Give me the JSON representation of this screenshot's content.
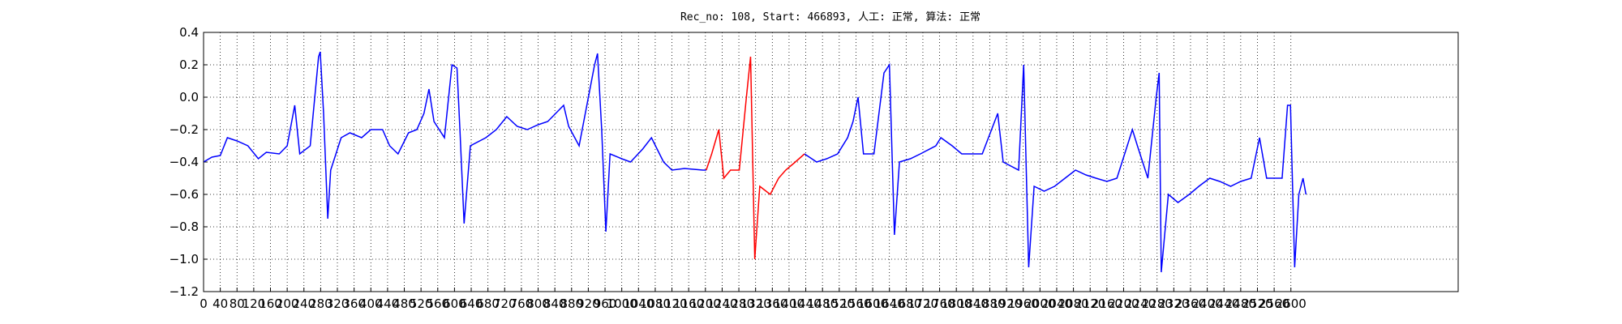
{
  "chart_data": {
    "type": "line",
    "title": "Rec_no: 108, Start: 466893, 人工: 正常, 算法: 正常",
    "xlim": [
      0,
      3000
    ],
    "xticks": [
      0,
      40,
      80,
      120,
      160,
      200,
      240,
      280,
      320,
      360,
      400,
      440,
      480,
      520,
      560,
      600,
      640,
      680,
      720,
      760,
      800,
      840,
      880,
      920,
      960,
      1000,
      1040,
      1080,
      1120,
      1160,
      1200,
      1240,
      1280,
      1320,
      1360,
      1400,
      1440,
      1480,
      1520,
      1560,
      1600,
      1640,
      1680,
      1720,
      1760,
      1800,
      1840,
      1880,
      1920,
      1960,
      2000,
      2040,
      2080,
      2120,
      2160,
      2200,
      2240,
      2280,
      2320,
      2360,
      2400,
      2440,
      2480,
      2520,
      2560,
      2600
    ],
    "ylim": [
      -1.2,
      0.4
    ],
    "yticks": [
      0.4,
      0.2,
      {
        "value": 0,
        "label": "0.0"
      },
      {
        "value": -0.2,
        "label": "−0.2"
      },
      {
        "value": -0.4,
        "label": "−0.4"
      },
      {
        "value": -0.6,
        "label": "−0.6"
      },
      {
        "value": -0.8,
        "label": "−0.8"
      },
      {
        "value": -1.0,
        "label": "−1.0"
      },
      {
        "value": -1.2,
        "label": "−1.2"
      }
    ],
    "grid": true,
    "series": [
      {
        "color": "#0000ff",
        "x": [
          0,
          20,
          40,
          57,
          80,
          106,
          131,
          150,
          181,
          200,
          218,
          230,
          255,
          275,
          279,
          287,
          297,
          304,
          329,
          350,
          378,
          400,
          428,
          445,
          465,
          490,
          510,
          527,
          539,
          551,
          576,
          594,
          606,
          613,
          623,
          638,
          675,
          700,
          725,
          750,
          774,
          800,
          823,
          861,
          873,
          898,
          935,
          942,
          952,
          962,
          972,
          1000,
          1021,
          1050,
          1071,
          1100,
          1120,
          1150,
          1194,
          1202
        ],
        "values": [
          -0.4,
          -0.37,
          -0.36,
          -0.25,
          -0.27,
          -0.3,
          -0.38,
          -0.34,
          -0.35,
          -0.3,
          -0.05,
          -0.35,
          -0.3,
          0.25,
          0.28,
          -0.1,
          -0.75,
          -0.45,
          -0.25,
          -0.22,
          -0.25,
          -0.2,
          -0.2,
          -0.3,
          -0.35,
          -0.22,
          -0.2,
          -0.1,
          0.05,
          -0.15,
          -0.25,
          0.2,
          0.18,
          -0.2,
          -0.78,
          -0.3,
          -0.25,
          -0.2,
          -0.12,
          -0.18,
          -0.2,
          -0.17,
          -0.15,
          -0.05,
          -0.18,
          -0.3,
          0.2,
          0.27,
          -0.2,
          -0.83,
          -0.35,
          -0.38,
          -0.4,
          -0.32,
          -0.25,
          -0.4,
          -0.45,
          -0.44,
          -0.45,
          -0.45
        ]
      },
      {
        "color": "#ff0000",
        "x": [
          1202,
          1215,
          1232,
          1244,
          1260,
          1281,
          1298,
          1308,
          1318,
          1330,
          1345,
          1355,
          1375,
          1392,
          1415,
          1437
        ],
        "values": [
          -0.45,
          -0.35,
          -0.2,
          -0.5,
          -0.45,
          -0.45,
          0.0,
          0.25,
          -1.0,
          -0.55,
          -0.58,
          -0.6,
          -0.5,
          -0.45,
          -0.4,
          -0.35
        ]
      },
      {
        "color": "#0000ff",
        "x": [
          1437,
          1466,
          1490,
          1516,
          1540,
          1553,
          1565,
          1578,
          1603,
          1627,
          1640,
          1652,
          1664,
          1690,
          1714,
          1751,
          1763,
          1790,
          1813,
          1862,
          1899,
          1912,
          1949,
          1961,
          1973,
          1986,
          2010,
          2035,
          2060,
          2085,
          2110,
          2134,
          2160,
          2184,
          2221,
          2233,
          2258,
          2278,
          2285,
          2290,
          2307,
          2330,
          2357,
          2380,
          2406,
          2430,
          2456,
          2480,
          2505,
          2525,
          2542,
          2560,
          2579,
          2592,
          2599,
          2609,
          2619,
          2629,
          2636
        ],
        "values": [
          -0.35,
          -0.4,
          -0.38,
          -0.35,
          -0.25,
          -0.15,
          0.0,
          -0.35,
          -0.35,
          0.15,
          0.2,
          -0.85,
          -0.4,
          -0.38,
          -0.35,
          -0.3,
          -0.25,
          -0.3,
          -0.35,
          -0.35,
          -0.1,
          -0.4,
          -0.45,
          0.2,
          -1.05,
          -0.55,
          -0.58,
          -0.55,
          -0.5,
          -0.45,
          -0.48,
          -0.5,
          -0.52,
          -0.5,
          -0.2,
          -0.3,
          -0.5,
          0.0,
          0.15,
          -1.08,
          -0.6,
          -0.65,
          -0.6,
          -0.55,
          -0.5,
          -0.52,
          -0.55,
          -0.52,
          -0.5,
          -0.25,
          -0.5,
          -0.5,
          -0.5,
          -0.05,
          -0.05,
          -1.05,
          -0.6,
          -0.5,
          -0.6
        ]
      }
    ]
  }
}
